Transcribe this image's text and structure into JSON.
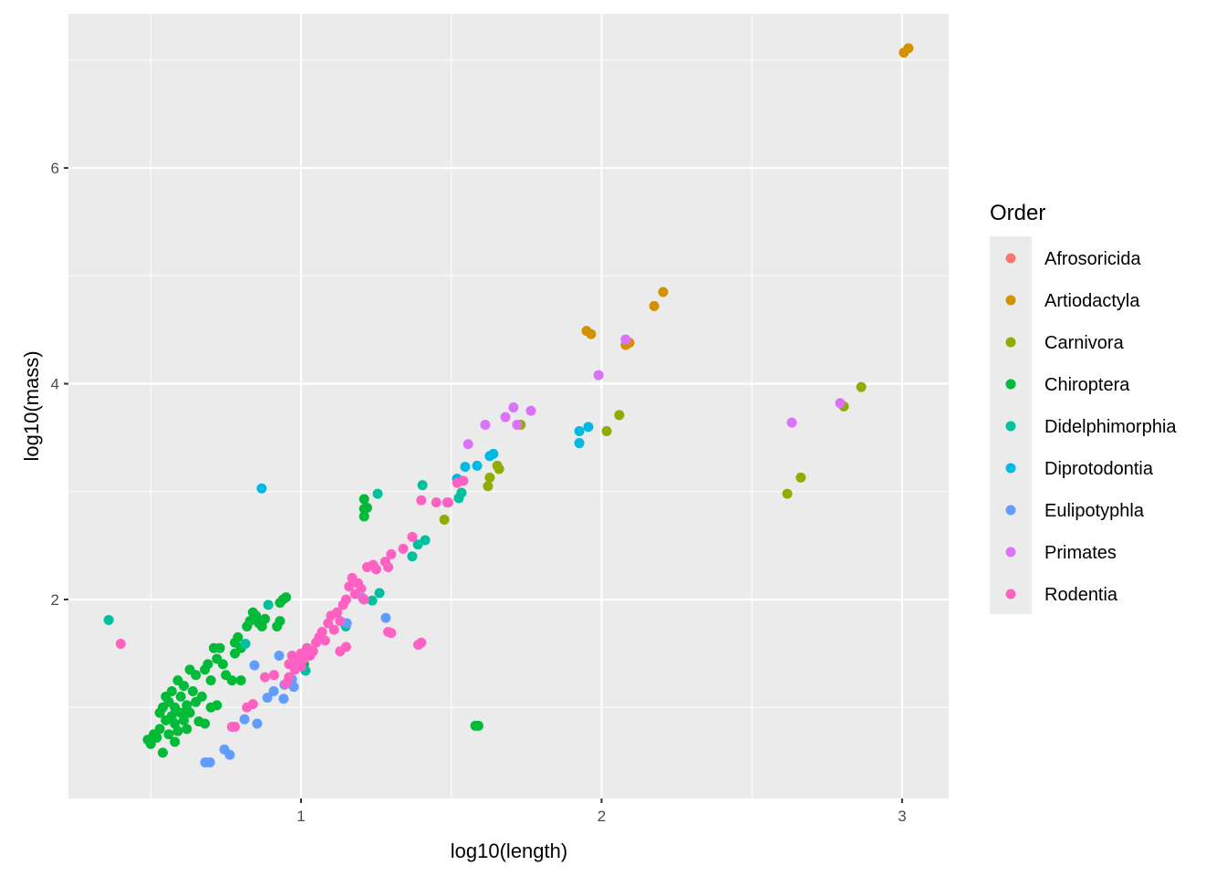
{
  "chart_data": {
    "type": "scatter",
    "title": "",
    "xlabel": "log10(length)",
    "ylabel": "log10(mass)",
    "xlim": [
      0.226,
      3.155
    ],
    "ylim": [
      0.156,
      7.43
    ],
    "xticks": [
      1,
      2,
      3
    ],
    "yticks": [
      2,
      4,
      6
    ],
    "xtick_labels": [
      "1",
      "2",
      "3"
    ],
    "ytick_labels": [
      "2",
      "4",
      "6"
    ],
    "grid": true,
    "legend": {
      "title": "Order",
      "placement": "right"
    },
    "series": [
      {
        "name": "Afrosoricida",
        "color": "#F8766D",
        "points": []
      },
      {
        "name": "Artiodactyla",
        "color": "#D39200",
        "points": [
          [
            3.006,
            7.07
          ],
          [
            3.021,
            7.11
          ],
          [
            1.95,
            4.49
          ],
          [
            1.965,
            4.46
          ],
          [
            2.08,
            4.36
          ],
          [
            2.093,
            4.38
          ],
          [
            2.175,
            4.72
          ],
          [
            2.205,
            4.85
          ]
        ]
      },
      {
        "name": "Carnivora",
        "color": "#93AA00",
        "points": [
          [
            2.864,
            3.97
          ],
          [
            2.806,
            3.79
          ],
          [
            2.663,
            3.13
          ],
          [
            2.618,
            2.98
          ],
          [
            2.059,
            3.71
          ],
          [
            2.017,
            3.56
          ],
          [
            1.731,
            3.62
          ],
          [
            1.653,
            3.24
          ],
          [
            1.659,
            3.21
          ],
          [
            1.628,
            3.13
          ],
          [
            1.622,
            3.05
          ],
          [
            1.477,
            2.74
          ]
        ]
      },
      {
        "name": "Chiroptera",
        "color": "#00BA38",
        "points": [
          [
            0.49,
            0.7
          ],
          [
            0.5,
            0.66
          ],
          [
            0.51,
            0.75
          ],
          [
            0.52,
            0.72
          ],
          [
            0.53,
            0.95
          ],
          [
            0.53,
            0.8
          ],
          [
            0.54,
            0.58
          ],
          [
            0.54,
            1.0
          ],
          [
            0.55,
            0.88
          ],
          [
            0.55,
            1.1
          ],
          [
            0.56,
            0.75
          ],
          [
            0.56,
            1.05
          ],
          [
            0.57,
            0.92
          ],
          [
            0.57,
            1.15
          ],
          [
            0.58,
            0.68
          ],
          [
            0.58,
            0.85
          ],
          [
            0.58,
            1.0
          ],
          [
            0.59,
            1.25
          ],
          [
            0.59,
            0.78
          ],
          [
            0.6,
            0.95
          ],
          [
            0.6,
            1.1
          ],
          [
            0.61,
            0.88
          ],
          [
            0.61,
            1.2
          ],
          [
            0.62,
            1.02
          ],
          [
            0.62,
            0.8
          ],
          [
            0.63,
            1.35
          ],
          [
            0.63,
            0.95
          ],
          [
            0.64,
            1.15
          ],
          [
            0.65,
            1.3
          ],
          [
            0.65,
            1.05
          ],
          [
            0.66,
            0.87
          ],
          [
            0.67,
            1.1
          ],
          [
            0.68,
            1.35
          ],
          [
            0.68,
            0.85
          ],
          [
            0.69,
            1.4
          ],
          [
            0.7,
            1.0
          ],
          [
            0.7,
            1.25
          ],
          [
            0.71,
            1.55
          ],
          [
            0.72,
            1.45
          ],
          [
            0.72,
            1.02
          ],
          [
            0.73,
            1.55
          ],
          [
            0.74,
            1.4
          ],
          [
            0.75,
            1.3
          ],
          [
            0.77,
            1.25
          ],
          [
            0.78,
            1.5
          ],
          [
            0.78,
            1.6
          ],
          [
            0.79,
            1.65
          ],
          [
            0.8,
            1.25
          ],
          [
            0.8,
            1.55
          ],
          [
            0.82,
            1.75
          ],
          [
            0.83,
            1.8
          ],
          [
            0.84,
            1.88
          ],
          [
            0.85,
            1.85
          ],
          [
            0.86,
            1.78
          ],
          [
            0.87,
            1.75
          ],
          [
            0.88,
            1.82
          ],
          [
            0.92,
            1.75
          ],
          [
            0.93,
            1.8
          ],
          [
            0.93,
            1.97
          ],
          [
            0.94,
            2.0
          ],
          [
            0.95,
            2.02
          ],
          [
            1.01,
            1.4
          ],
          [
            1.02,
            1.55
          ],
          [
            1.58,
            0.83
          ],
          [
            1.59,
            0.83
          ],
          [
            1.21,
            2.93
          ],
          [
            1.21,
            2.84
          ],
          [
            1.22,
            2.85
          ],
          [
            1.21,
            2.77
          ]
        ]
      },
      {
        "name": "Didelphimorphia",
        "color": "#00C19F",
        "points": [
          [
            0.36,
            1.81
          ],
          [
            1.404,
            3.06
          ],
          [
            1.255,
            2.98
          ],
          [
            1.413,
            2.55
          ],
          [
            1.389,
            2.51
          ],
          [
            1.37,
            2.4
          ],
          [
            1.525,
            2.94
          ],
          [
            1.534,
            2.99
          ],
          [
            1.261,
            2.06
          ],
          [
            1.237,
            1.99
          ],
          [
            1.149,
            1.75
          ],
          [
            0.891,
            1.95
          ],
          [
            0.815,
            1.59
          ],
          [
            1.015,
            1.34
          ]
        ]
      },
      {
        "name": "Diprotodontia",
        "color": "#00B9E3",
        "points": [
          [
            0.869,
            3.03
          ],
          [
            1.956,
            3.6
          ],
          [
            1.926,
            3.56
          ],
          [
            1.926,
            3.45
          ],
          [
            1.628,
            3.33
          ],
          [
            1.64,
            3.35
          ],
          [
            1.586,
            3.24
          ],
          [
            1.546,
            3.23
          ],
          [
            1.519,
            3.12
          ]
        ]
      },
      {
        "name": "Eulipotyphla",
        "color": "#619CFF",
        "points": [
          [
            1.282,
            1.83
          ],
          [
            1.206,
            2.01
          ],
          [
            1.152,
            1.78
          ],
          [
            0.927,
            1.48
          ],
          [
            0.845,
            1.39
          ],
          [
            0.888,
            1.09
          ],
          [
            0.909,
            1.15
          ],
          [
            0.945,
            1.21
          ],
          [
            0.976,
            1.19
          ],
          [
            0.942,
            1.08
          ],
          [
            0.812,
            0.89
          ],
          [
            0.854,
            0.85
          ],
          [
            0.745,
            0.61
          ],
          [
            0.763,
            0.56
          ],
          [
            0.681,
            0.49
          ],
          [
            0.697,
            0.49
          ],
          [
            0.97,
            1.26
          ]
        ]
      },
      {
        "name": "Primates",
        "color": "#DB72FB",
        "points": [
          [
            2.794,
            3.82
          ],
          [
            2.633,
            3.64
          ],
          [
            2.08,
            4.41
          ],
          [
            1.99,
            4.08
          ],
          [
            1.707,
            3.78
          ],
          [
            1.719,
            3.62
          ],
          [
            1.68,
            3.69
          ],
          [
            1.765,
            3.75
          ],
          [
            1.613,
            3.62
          ],
          [
            1.556,
            3.44
          ],
          [
            1.486,
            2.9
          ]
        ]
      },
      {
        "name": "Rodentia",
        "color": "#FF61C3",
        "points": [
          [
            0.4,
            1.59
          ],
          [
            0.77,
            0.82
          ],
          [
            0.78,
            0.82
          ],
          [
            0.82,
            1.0
          ],
          [
            0.84,
            1.03
          ],
          [
            0.88,
            1.28
          ],
          [
            0.91,
            1.3
          ],
          [
            0.95,
            1.22
          ],
          [
            0.96,
            1.28
          ],
          [
            0.96,
            1.4
          ],
          [
            0.97,
            1.48
          ],
          [
            0.98,
            1.35
          ],
          [
            0.99,
            1.42
          ],
          [
            1.0,
            1.5
          ],
          [
            1.0,
            1.38
          ],
          [
            1.01,
            1.45
          ],
          [
            1.02,
            1.55
          ],
          [
            1.03,
            1.48
          ],
          [
            1.04,
            1.52
          ],
          [
            1.05,
            1.6
          ],
          [
            1.06,
            1.65
          ],
          [
            1.07,
            1.7
          ],
          [
            1.08,
            1.62
          ],
          [
            1.09,
            1.78
          ],
          [
            1.1,
            1.85
          ],
          [
            1.11,
            1.72
          ],
          [
            1.12,
            1.88
          ],
          [
            1.13,
            1.8
          ],
          [
            1.14,
            1.95
          ],
          [
            1.15,
            2.0
          ],
          [
            1.16,
            2.12
          ],
          [
            1.17,
            2.2
          ],
          [
            1.18,
            2.05
          ],
          [
            1.19,
            2.15
          ],
          [
            1.2,
            2.1
          ],
          [
            1.21,
            2.0
          ],
          [
            1.22,
            2.3
          ],
          [
            1.24,
            2.32
          ],
          [
            1.25,
            2.28
          ],
          [
            1.28,
            2.35
          ],
          [
            1.29,
            2.3
          ],
          [
            1.3,
            2.42
          ],
          [
            1.34,
            2.47
          ],
          [
            1.37,
            2.58
          ],
          [
            1.4,
            2.92
          ],
          [
            1.45,
            2.9
          ],
          [
            1.49,
            2.9
          ],
          [
            1.54,
            3.1
          ],
          [
            1.52,
            3.08
          ],
          [
            1.29,
            1.7
          ],
          [
            1.3,
            1.69
          ],
          [
            1.39,
            1.58
          ],
          [
            1.4,
            1.6
          ],
          [
            1.13,
            1.52
          ],
          [
            1.15,
            1.56
          ]
        ]
      }
    ]
  }
}
